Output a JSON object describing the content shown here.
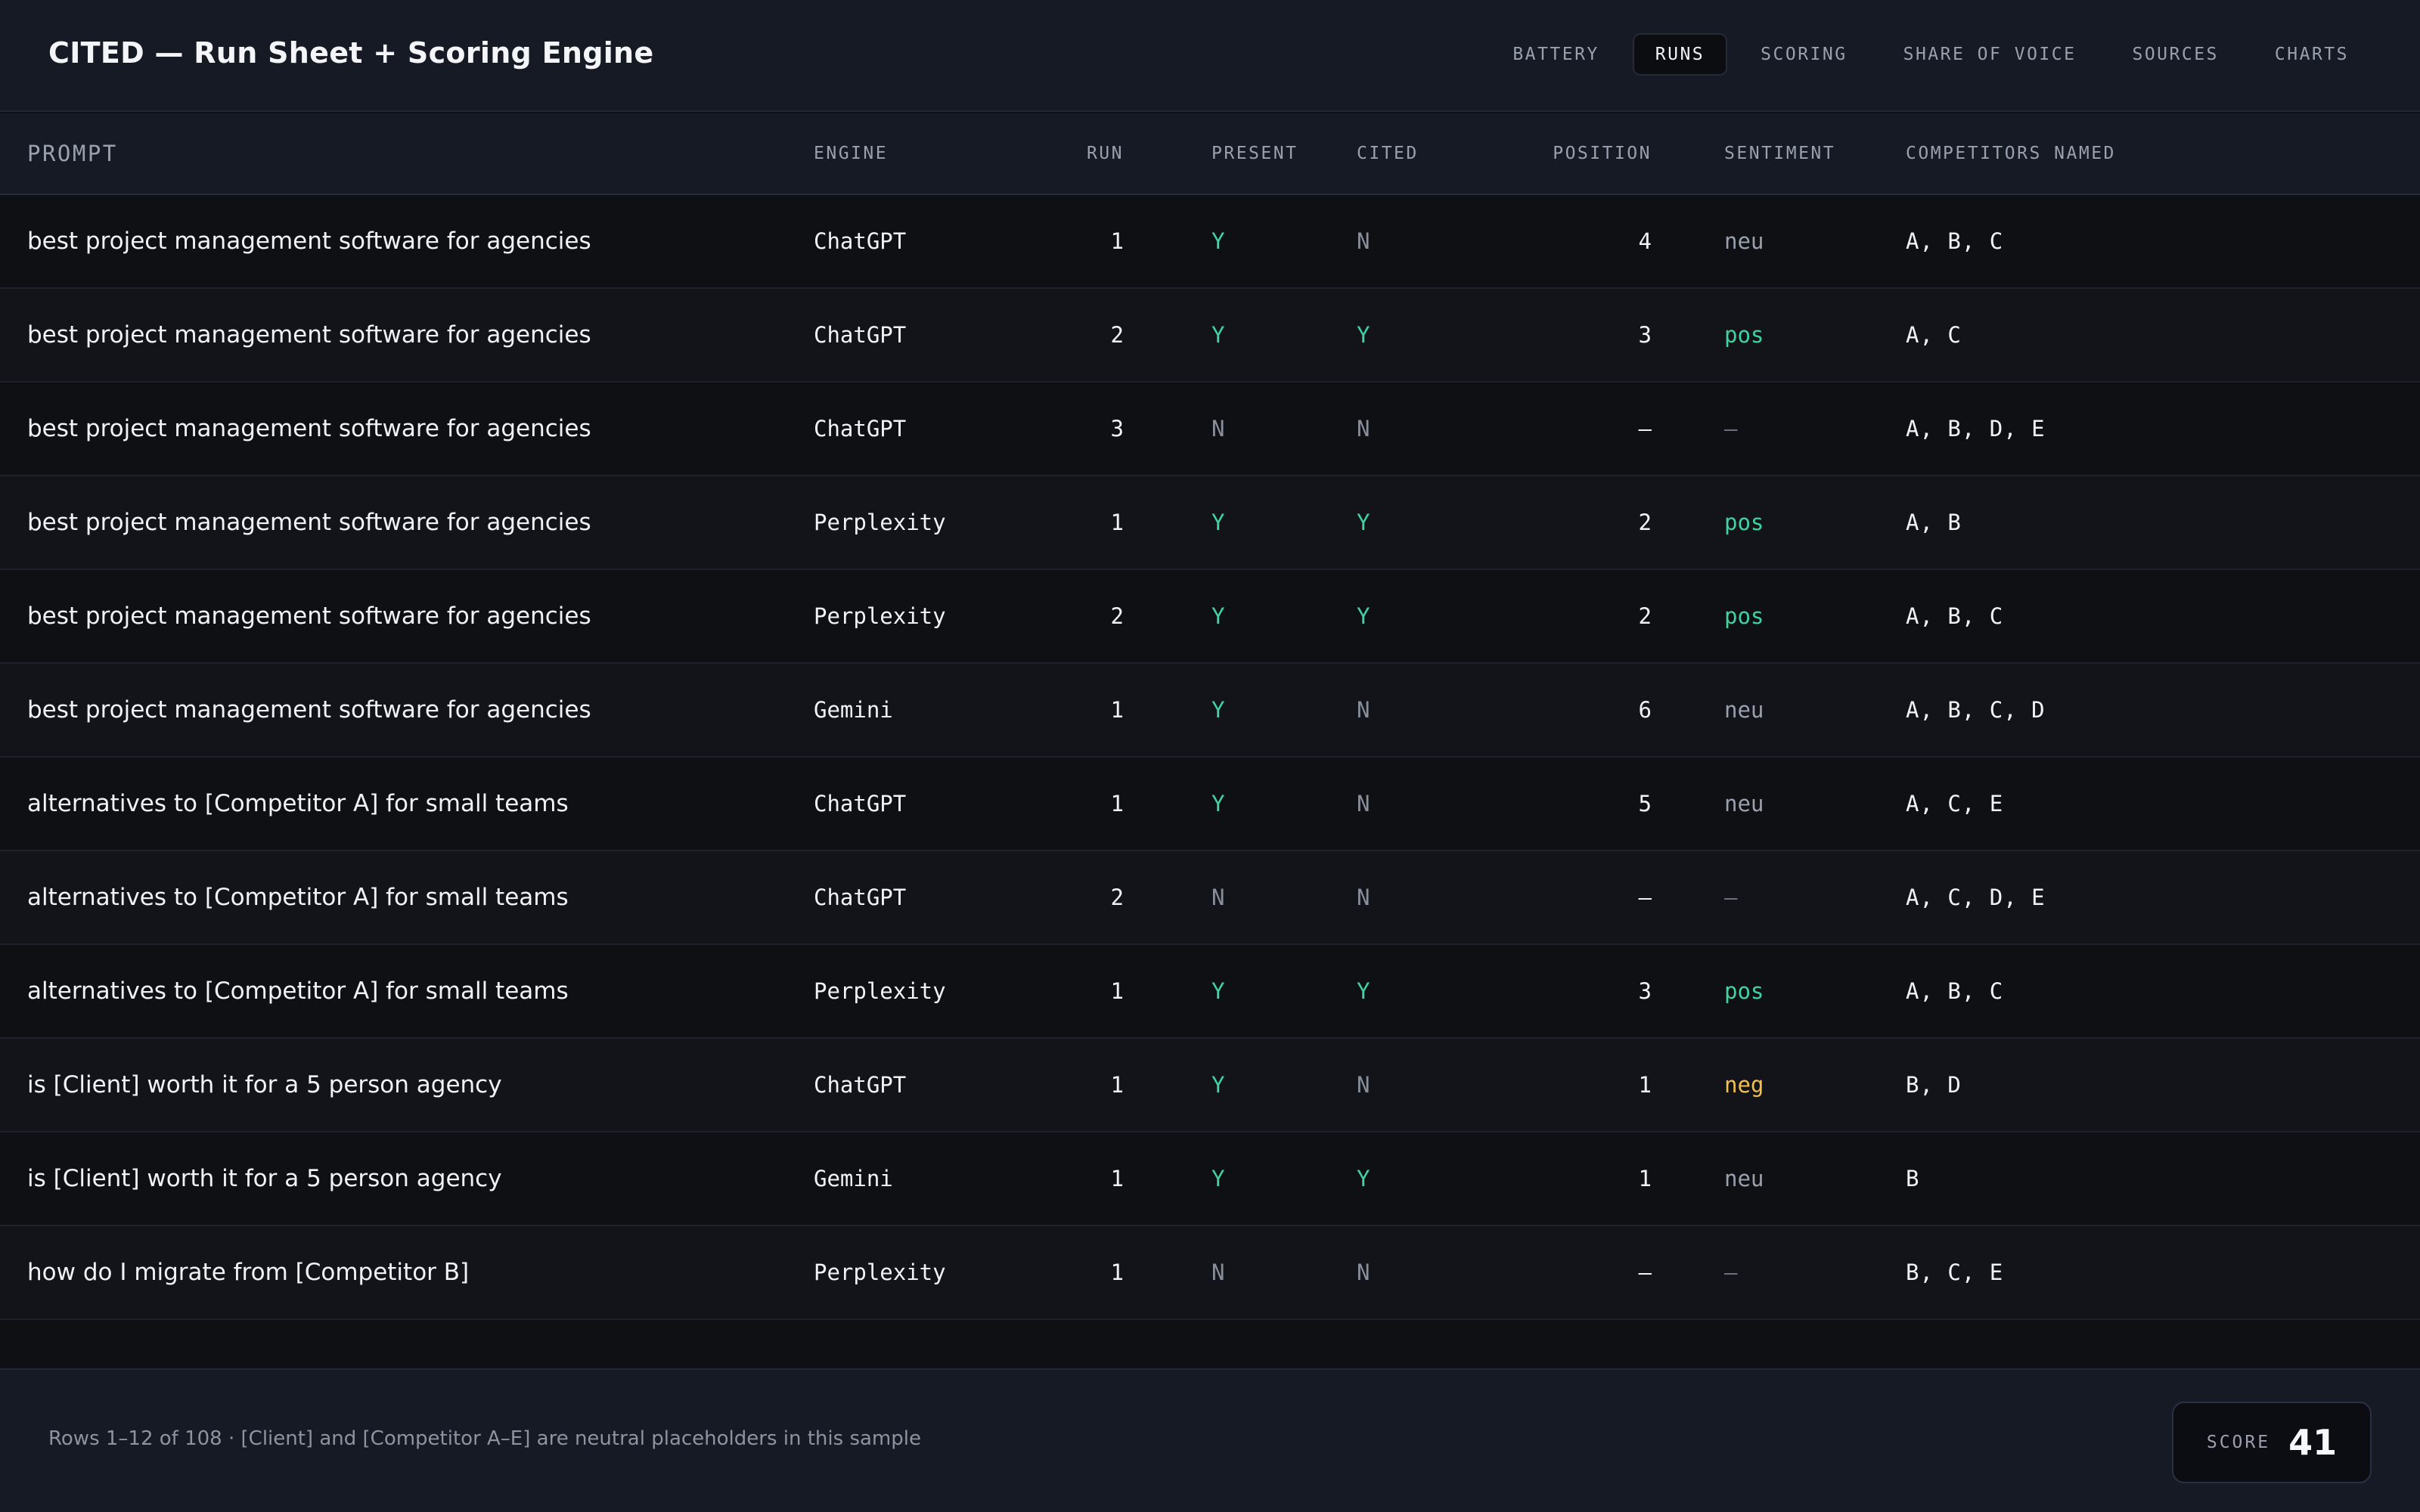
{
  "app": {
    "title": "CITED — Run Sheet + Scoring Engine"
  },
  "nav": {
    "tabs": [
      "BATTERY",
      "RUNS",
      "SCORING",
      "SHARE OF VOICE",
      "SOURCES",
      "CHARTS"
    ],
    "active": "RUNS"
  },
  "table": {
    "headers": {
      "prompt": "PROMPT",
      "engine": "ENGINE",
      "run": "RUN",
      "present": "PRESENT",
      "cited": "CITED",
      "position": "POSITION",
      "sentiment": "SENTIMENT",
      "competitors": "COMPETITORS NAMED"
    },
    "rows": [
      {
        "prompt": "best project management software for agencies",
        "engine": "ChatGPT",
        "run": "1",
        "present": "Y",
        "cited": "N",
        "position": "4",
        "sentiment": "neu",
        "competitors": "A, B, C"
      },
      {
        "prompt": "best project management software for agencies",
        "engine": "ChatGPT",
        "run": "2",
        "present": "Y",
        "cited": "Y",
        "position": "3",
        "sentiment": "pos",
        "competitors": "A, C"
      },
      {
        "prompt": "best project management software for agencies",
        "engine": "ChatGPT",
        "run": "3",
        "present": "N",
        "cited": "N",
        "position": "—",
        "sentiment": "—",
        "competitors": "A, B, D, E"
      },
      {
        "prompt": "best project management software for agencies",
        "engine": "Perplexity",
        "run": "1",
        "present": "Y",
        "cited": "Y",
        "position": "2",
        "sentiment": "pos",
        "competitors": "A, B"
      },
      {
        "prompt": "best project management software for agencies",
        "engine": "Perplexity",
        "run": "2",
        "present": "Y",
        "cited": "Y",
        "position": "2",
        "sentiment": "pos",
        "competitors": "A, B, C"
      },
      {
        "prompt": "best project management software for agencies",
        "engine": "Gemini",
        "run": "1",
        "present": "Y",
        "cited": "N",
        "position": "6",
        "sentiment": "neu",
        "competitors": "A, B, C, D"
      },
      {
        "prompt": "alternatives to [Competitor A] for small teams",
        "engine": "ChatGPT",
        "run": "1",
        "present": "Y",
        "cited": "N",
        "position": "5",
        "sentiment": "neu",
        "competitors": "A, C, E"
      },
      {
        "prompt": "alternatives to [Competitor A] for small teams",
        "engine": "ChatGPT",
        "run": "2",
        "present": "N",
        "cited": "N",
        "position": "—",
        "sentiment": "—",
        "competitors": "A, C, D, E"
      },
      {
        "prompt": "alternatives to [Competitor A] for small teams",
        "engine": "Perplexity",
        "run": "1",
        "present": "Y",
        "cited": "Y",
        "position": "3",
        "sentiment": "pos",
        "competitors": "A, B, C"
      },
      {
        "prompt": "is [Client] worth it for a 5 person agency",
        "engine": "ChatGPT",
        "run": "1",
        "present": "Y",
        "cited": "N",
        "position": "1",
        "sentiment": "neg",
        "competitors": "B, D"
      },
      {
        "prompt": "is [Client] worth it for a 5 person agency",
        "engine": "Gemini",
        "run": "1",
        "present": "Y",
        "cited": "Y",
        "position": "1",
        "sentiment": "neu",
        "competitors": "B"
      },
      {
        "prompt": "how do I migrate from [Competitor B]",
        "engine": "Perplexity",
        "run": "1",
        "present": "N",
        "cited": "N",
        "position": "—",
        "sentiment": "—",
        "competitors": "B, C, E"
      }
    ]
  },
  "footer": {
    "note": "Rows 1–12 of 108 · [Client] and [Competitor A–E] are neutral placeholders in this sample",
    "score_label": "SCORE",
    "score_value": "41"
  },
  "colors": {
    "background": "#0f1014",
    "panel": "#161a24",
    "positive": "#3fd3a0",
    "negative": "#f4c04c",
    "muted": "#9aa0ae"
  }
}
